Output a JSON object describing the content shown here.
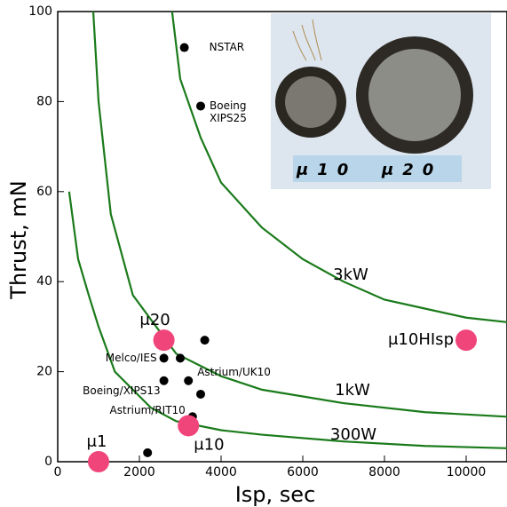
{
  "chart_data": {
    "type": "scatter",
    "x_label": "Isp, sec",
    "y_label": "Thrust, mN",
    "xlim": [
      0,
      11000
    ],
    "ylim": [
      0,
      100
    ],
    "xticks": [
      0,
      2000,
      4000,
      6000,
      8000,
      10000
    ],
    "yticks": [
      0,
      20,
      40,
      60,
      80,
      100
    ],
    "grid": false,
    "inset_labels": [
      "μ10",
      "μ20"
    ],
    "series": [
      {
        "type": "line",
        "name": "3kW",
        "color": "#1a7a1a",
        "x": [
          2800,
          3000,
          3500,
          4000,
          5000,
          6000,
          7000,
          8000,
          9000,
          10000,
          11000
        ],
        "values": [
          100,
          85,
          72,
          62,
          52,
          45,
          40,
          36,
          34,
          32,
          31
        ]
      },
      {
        "type": "line",
        "name": "1kW",
        "color": "#1a7a1a",
        "x": [
          870,
          1000,
          1300,
          1840,
          2900,
          4000,
          5000,
          7000,
          9000,
          11000
        ],
        "values": [
          100,
          80,
          55,
          37,
          24,
          19,
          16,
          13,
          11,
          10
        ]
      },
      {
        "type": "line",
        "name": "300W",
        "color": "#1a7a1a",
        "x": [
          280,
          500,
          760,
          1000,
          1400,
          2280,
          2900,
          4000,
          5000,
          7000,
          9000,
          11000
        ],
        "values": [
          60,
          45,
          37,
          30,
          20,
          12,
          9,
          7,
          6,
          4.5,
          3.5,
          3
        ]
      },
      {
        "type": "scatter",
        "color": "#000000",
        "size": 5,
        "x": [
          3100,
          3500,
          3600,
          2600,
          3000,
          2600,
          3200,
          3500,
          3300,
          2200
        ],
        "values": [
          92,
          79,
          27,
          23,
          23,
          18,
          18,
          15,
          10,
          2
        ],
        "labels": [
          [
            "NSTAR"
          ],
          [
            "Boeing",
            "XIPS25"
          ],
          null,
          [
            "Melco/IES"
          ],
          null,
          [
            "Boeing/XIPS13"
          ],
          [
            "Astrium/UK10"
          ],
          null,
          [
            "Astrium/RIT10"
          ],
          null
        ]
      },
      {
        "type": "scatter",
        "color": "#f0457a",
        "size": 12,
        "x": [
          2600,
          10000,
          3200,
          1000
        ],
        "values": [
          27,
          27,
          8,
          0
        ],
        "labels": [
          [
            "μ20"
          ],
          [
            "μ10HIsp"
          ],
          [
            "μ10"
          ],
          [
            "μ1"
          ]
        ]
      }
    ]
  }
}
